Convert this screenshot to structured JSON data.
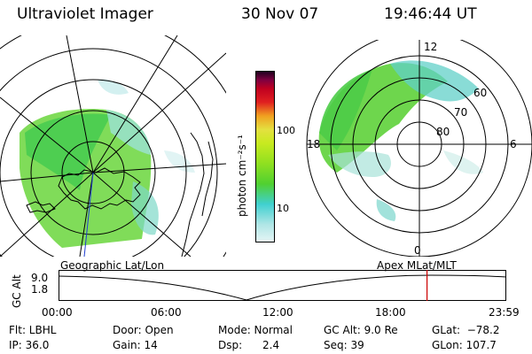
{
  "header": {
    "instrument": "Ultraviolet Imager",
    "date": "30 Nov 07",
    "time": "19:46:44 UT"
  },
  "left_panel": {
    "label": "Geographic Lat/Lon"
  },
  "right_panel": {
    "label": "Apex MLat/MLT",
    "mlt_labels": {
      "top": "12",
      "left": "18",
      "right": "6",
      "bottom": "0"
    },
    "lat_labels": [
      "60",
      "70",
      "80"
    ]
  },
  "colorbar": {
    "unit_label": "photon cm⁻²s⁻¹",
    "tick_labels": [
      "100",
      "10"
    ],
    "colors": [
      "#e5f5f5",
      "#b0e6e6",
      "#40d0d0",
      "#50d030",
      "#90e020",
      "#c8ea20",
      "#e4e040",
      "#f0a020",
      "#e02020",
      "#c00020",
      "#800040",
      "#200020"
    ]
  },
  "altitude_plot": {
    "ylabel": "GC Alt",
    "ytick_labels": [
      "9.0",
      "1.8"
    ],
    "xtick_labels": [
      "00:00",
      "06:00",
      "12:00",
      "18:00",
      "23:59"
    ],
    "marker_time": "19:46:44",
    "marker_color": "#cc0000"
  },
  "status": {
    "filter": "Flt: LBHL",
    "ip": "IP: 36.0",
    "door": "Door: Open",
    "gain": "Gain: 14",
    "mode": "Mode: Normal",
    "dsp": "Dsp:      2.4",
    "gc_alt": "GC Alt: 9.0 Re",
    "seq": "Seq: 39",
    "glat": "GLat:  −78.2",
    "glon": "GLon: 107.7"
  }
}
